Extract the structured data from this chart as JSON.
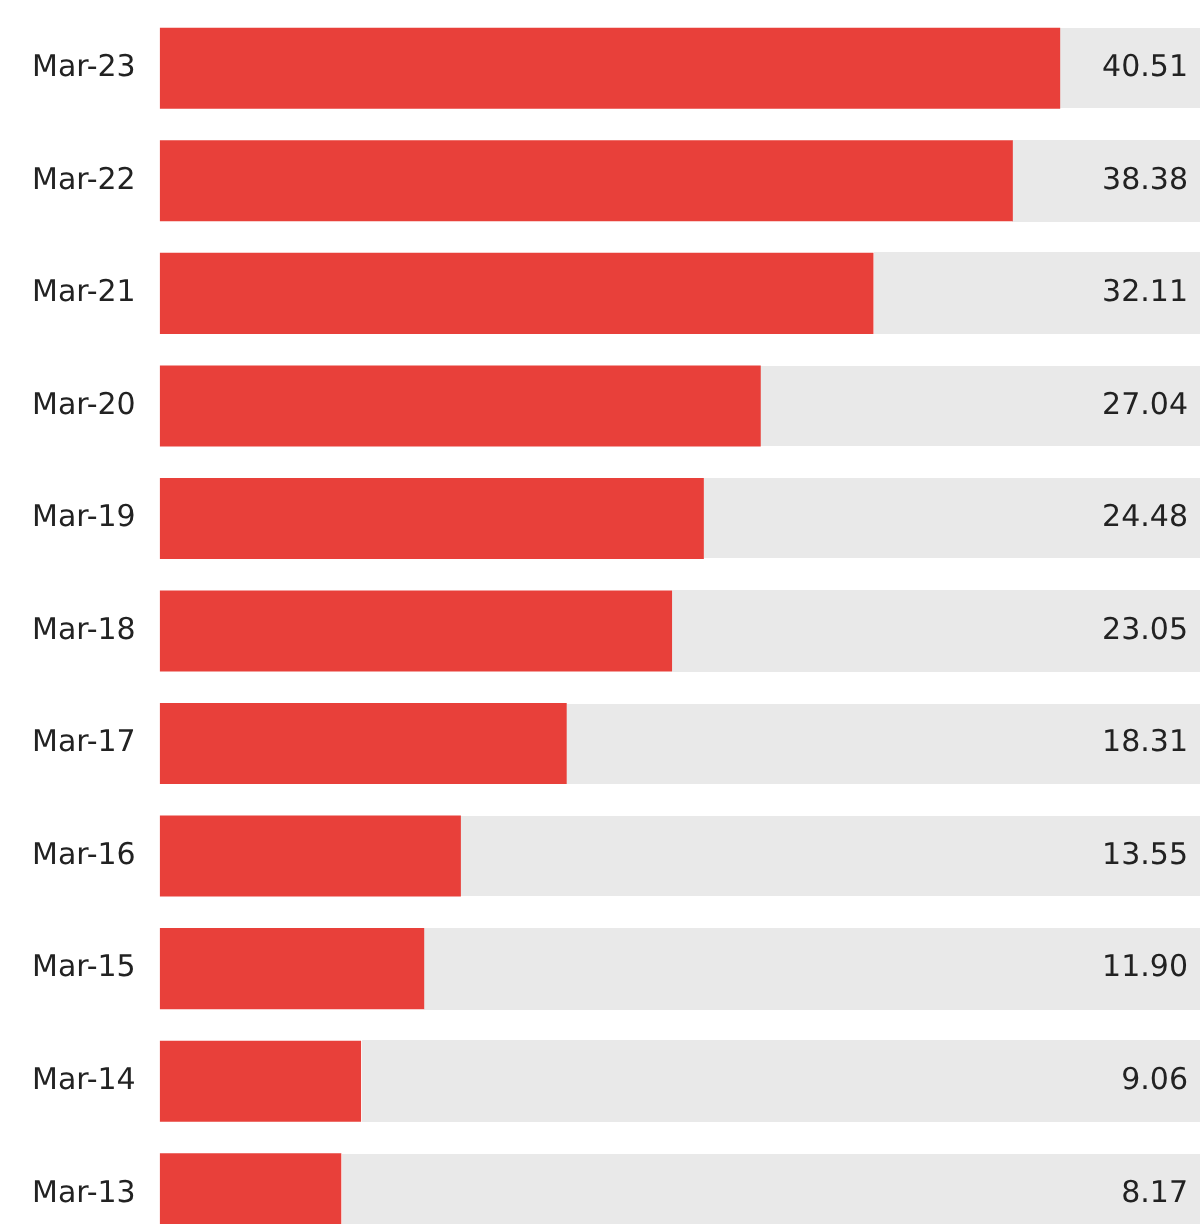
{
  "chart_data": {
    "type": "bar",
    "orientation": "horizontal",
    "categories": [
      "Mar-23",
      "Mar-22",
      "Mar-21",
      "Mar-20",
      "Mar-19",
      "Mar-18",
      "Mar-17",
      "Mar-16",
      "Mar-15",
      "Mar-14",
      "Mar-13"
    ],
    "values": [
      40.51,
      38.38,
      32.11,
      27.04,
      24.48,
      23.05,
      18.31,
      13.55,
      11.9,
      9.06,
      8.17
    ],
    "value_labels": [
      "40.51",
      "38.38",
      "32.11",
      "27.04",
      "24.48",
      "23.05",
      "18.31",
      "13.55",
      "11.90",
      "9.06",
      "8.17"
    ],
    "color": "#e8403a",
    "xlim": [
      0,
      46.8
    ],
    "tick_labels": "y",
    "grid": false,
    "legend": false
  }
}
